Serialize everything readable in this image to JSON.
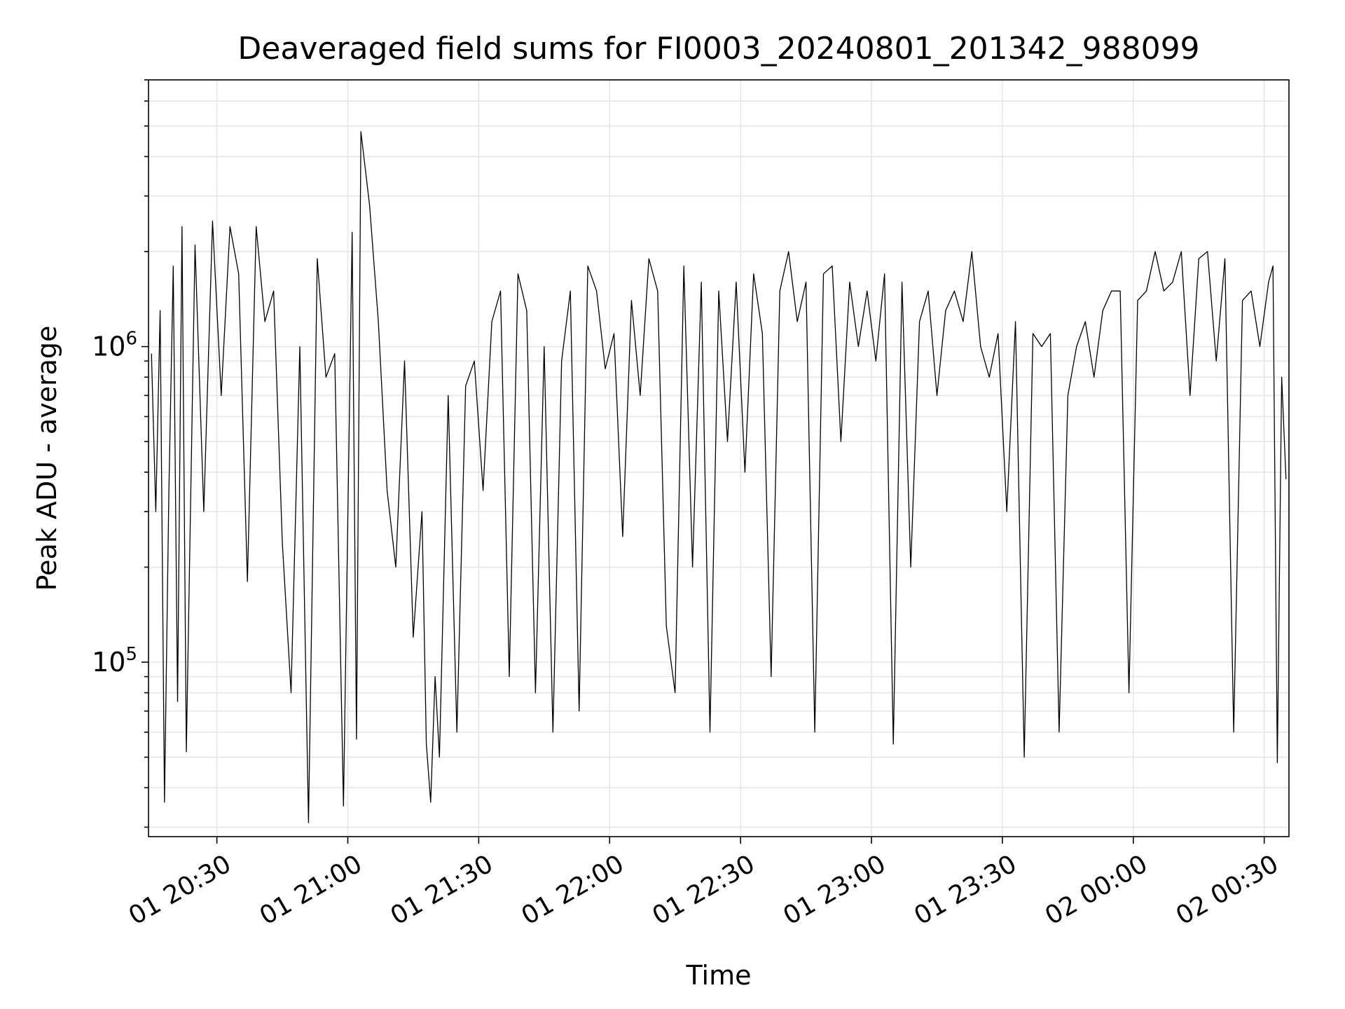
{
  "chart_data": {
    "type": "line",
    "title": "Deaveraged field sums for FI0003_20240801_201342_988099",
    "xlabel": "Time",
    "ylabel": "Peak ADU - average",
    "y_scale": "log",
    "ylim": [
      28000,
      7000000
    ],
    "xlim": [
      "2024-08-01 20:14:20",
      "2024-08-02 00:35:40"
    ],
    "x_ticks": [
      {
        "value": "2024-08-01 20:30",
        "label": "01 20:30"
      },
      {
        "value": "2024-08-01 21:00",
        "label": "01 21:00"
      },
      {
        "value": "2024-08-01 21:30",
        "label": "01 21:30"
      },
      {
        "value": "2024-08-01 22:00",
        "label": "01 22:00"
      },
      {
        "value": "2024-08-01 22:30",
        "label": "01 22:30"
      },
      {
        "value": "2024-08-01 23:00",
        "label": "01 23:00"
      },
      {
        "value": "2024-08-01 23:30",
        "label": "01 23:30"
      },
      {
        "value": "2024-08-02 00:00",
        "label": "02 00:00"
      },
      {
        "value": "2024-08-02 00:30",
        "label": "02 00:30"
      }
    ],
    "y_ticks": [
      {
        "value": 100000,
        "base": "10",
        "exp": "5"
      },
      {
        "value": 1000000,
        "base": "10",
        "exp": "6"
      }
    ],
    "grid": true,
    "legend": "none",
    "line_color": "#000000",
    "series": [
      {
        "x": [
          "2024-08-01 20:15:00",
          "2024-08-01 20:16:00",
          "2024-08-01 20:17:00",
          "2024-08-01 20:18:00",
          "2024-08-01 20:19:00",
          "2024-08-01 20:20:00",
          "2024-08-01 20:21:00",
          "2024-08-01 20:22:00",
          "2024-08-01 20:23:00",
          "2024-08-01 20:25:00",
          "2024-08-01 20:27:00",
          "2024-08-01 20:29:00",
          "2024-08-01 20:31:00",
          "2024-08-01 20:33:00",
          "2024-08-01 20:35:00",
          "2024-08-01 20:37:00",
          "2024-08-01 20:39:00",
          "2024-08-01 20:41:00",
          "2024-08-01 20:43:00",
          "2024-08-01 20:45:00",
          "2024-08-01 20:47:00",
          "2024-08-01 20:49:00",
          "2024-08-01 20:51:00",
          "2024-08-01 20:53:00",
          "2024-08-01 20:55:00",
          "2024-08-01 20:57:00",
          "2024-08-01 20:59:00",
          "2024-08-01 21:01:00",
          "2024-08-01 21:02:00",
          "2024-08-01 21:03:00",
          "2024-08-01 21:05:00",
          "2024-08-01 21:07:00",
          "2024-08-01 21:09:00",
          "2024-08-01 21:11:00",
          "2024-08-01 21:13:00",
          "2024-08-01 21:15:00",
          "2024-08-01 21:17:00",
          "2024-08-01 21:18:00",
          "2024-08-01 21:19:00",
          "2024-08-01 21:20:00",
          "2024-08-01 21:21:00",
          "2024-08-01 21:23:00",
          "2024-08-01 21:25:00",
          "2024-08-01 21:27:00",
          "2024-08-01 21:29:00",
          "2024-08-01 21:31:00",
          "2024-08-01 21:33:00",
          "2024-08-01 21:35:00",
          "2024-08-01 21:37:00",
          "2024-08-01 21:39:00",
          "2024-08-01 21:41:00",
          "2024-08-01 21:43:00",
          "2024-08-01 21:45:00",
          "2024-08-01 21:47:00",
          "2024-08-01 21:49:00",
          "2024-08-01 21:51:00",
          "2024-08-01 21:53:00",
          "2024-08-01 21:55:00",
          "2024-08-01 21:57:00",
          "2024-08-01 21:59:00",
          "2024-08-01 22:01:00",
          "2024-08-01 22:03:00",
          "2024-08-01 22:05:00",
          "2024-08-01 22:07:00",
          "2024-08-01 22:09:00",
          "2024-08-01 22:11:00",
          "2024-08-01 22:13:00",
          "2024-08-01 22:15:00",
          "2024-08-01 22:17:00",
          "2024-08-01 22:19:00",
          "2024-08-01 22:21:00",
          "2024-08-01 22:23:00",
          "2024-08-01 22:25:00",
          "2024-08-01 22:27:00",
          "2024-08-01 22:29:00",
          "2024-08-01 22:31:00",
          "2024-08-01 22:33:00",
          "2024-08-01 22:35:00",
          "2024-08-01 22:37:00",
          "2024-08-01 22:39:00",
          "2024-08-01 22:41:00",
          "2024-08-01 22:43:00",
          "2024-08-01 22:45:00",
          "2024-08-01 22:47:00",
          "2024-08-01 22:49:00",
          "2024-08-01 22:51:00",
          "2024-08-01 22:53:00",
          "2024-08-01 22:55:00",
          "2024-08-01 22:57:00",
          "2024-08-01 22:59:00",
          "2024-08-01 23:01:00",
          "2024-08-01 23:03:00",
          "2024-08-01 23:05:00",
          "2024-08-01 23:07:00",
          "2024-08-01 23:09:00",
          "2024-08-01 23:11:00",
          "2024-08-01 23:13:00",
          "2024-08-01 23:15:00",
          "2024-08-01 23:17:00",
          "2024-08-01 23:19:00",
          "2024-08-01 23:21:00",
          "2024-08-01 23:23:00",
          "2024-08-01 23:25:00",
          "2024-08-01 23:27:00",
          "2024-08-01 23:29:00",
          "2024-08-01 23:31:00",
          "2024-08-01 23:33:00",
          "2024-08-01 23:35:00",
          "2024-08-01 23:37:00",
          "2024-08-01 23:39:00",
          "2024-08-01 23:41:00",
          "2024-08-01 23:43:00",
          "2024-08-01 23:45:00",
          "2024-08-01 23:47:00",
          "2024-08-01 23:49:00",
          "2024-08-01 23:51:00",
          "2024-08-01 23:53:00",
          "2024-08-01 23:55:00",
          "2024-08-01 23:57:00",
          "2024-08-01 23:59:00",
          "2024-08-02 00:01:00",
          "2024-08-02 00:03:00",
          "2024-08-02 00:05:00",
          "2024-08-02 00:07:00",
          "2024-08-02 00:09:00",
          "2024-08-02 00:11:00",
          "2024-08-02 00:13:00",
          "2024-08-02 00:15:00",
          "2024-08-02 00:17:00",
          "2024-08-02 00:19:00",
          "2024-08-02 00:21:00",
          "2024-08-02 00:23:00",
          "2024-08-02 00:25:00",
          "2024-08-02 00:27:00",
          "2024-08-02 00:29:00",
          "2024-08-02 00:31:00",
          "2024-08-02 00:32:00",
          "2024-08-02 00:33:00",
          "2024-08-02 00:34:00",
          "2024-08-02 00:35:00"
        ],
        "y": [
          950000,
          300000,
          1300000,
          36000,
          350000,
          1800000,
          75000,
          2400000,
          52000,
          2100000,
          300000,
          2500000,
          700000,
          2400000,
          1700000,
          180000,
          2400000,
          1200000,
          1500000,
          240000,
          80000,
          1000000,
          31000,
          1900000,
          800000,
          950000,
          35000,
          2300000,
          57000,
          4800000,
          2800000,
          1200000,
          350000,
          200000,
          900000,
          120000,
          300000,
          55000,
          36000,
          90000,
          50000,
          700000,
          60000,
          750000,
          900000,
          350000,
          1200000,
          1500000,
          90000,
          1700000,
          1300000,
          80000,
          1000000,
          60000,
          900000,
          1500000,
          70000,
          1800000,
          1500000,
          850000,
          1100000,
          250000,
          1400000,
          700000,
          1900000,
          1500000,
          130000,
          80000,
          1800000,
          200000,
          1600000,
          60000,
          1500000,
          500000,
          1600000,
          400000,
          1700000,
          1100000,
          90000,
          1500000,
          2000000,
          1200000,
          1600000,
          60000,
          1700000,
          1800000,
          500000,
          1600000,
          1000000,
          1500000,
          900000,
          1700000,
          55000,
          1600000,
          200000,
          1200000,
          1500000,
          700000,
          1300000,
          1500000,
          1200000,
          2000000,
          1000000,
          800000,
          1100000,
          300000,
          1200000,
          50000,
          1100000,
          1000000,
          1100000,
          60000,
          700000,
          1000000,
          1200000,
          800000,
          1300000,
          1500000,
          1500000,
          80000,
          1400000,
          1500000,
          2000000,
          1500000,
          1600000,
          2000000,
          700000,
          1900000,
          2000000,
          900000,
          1900000,
          60000,
          1400000,
          1500000,
          1000000,
          1600000,
          1800000,
          48000,
          800000,
          380000
        ]
      }
    ]
  }
}
